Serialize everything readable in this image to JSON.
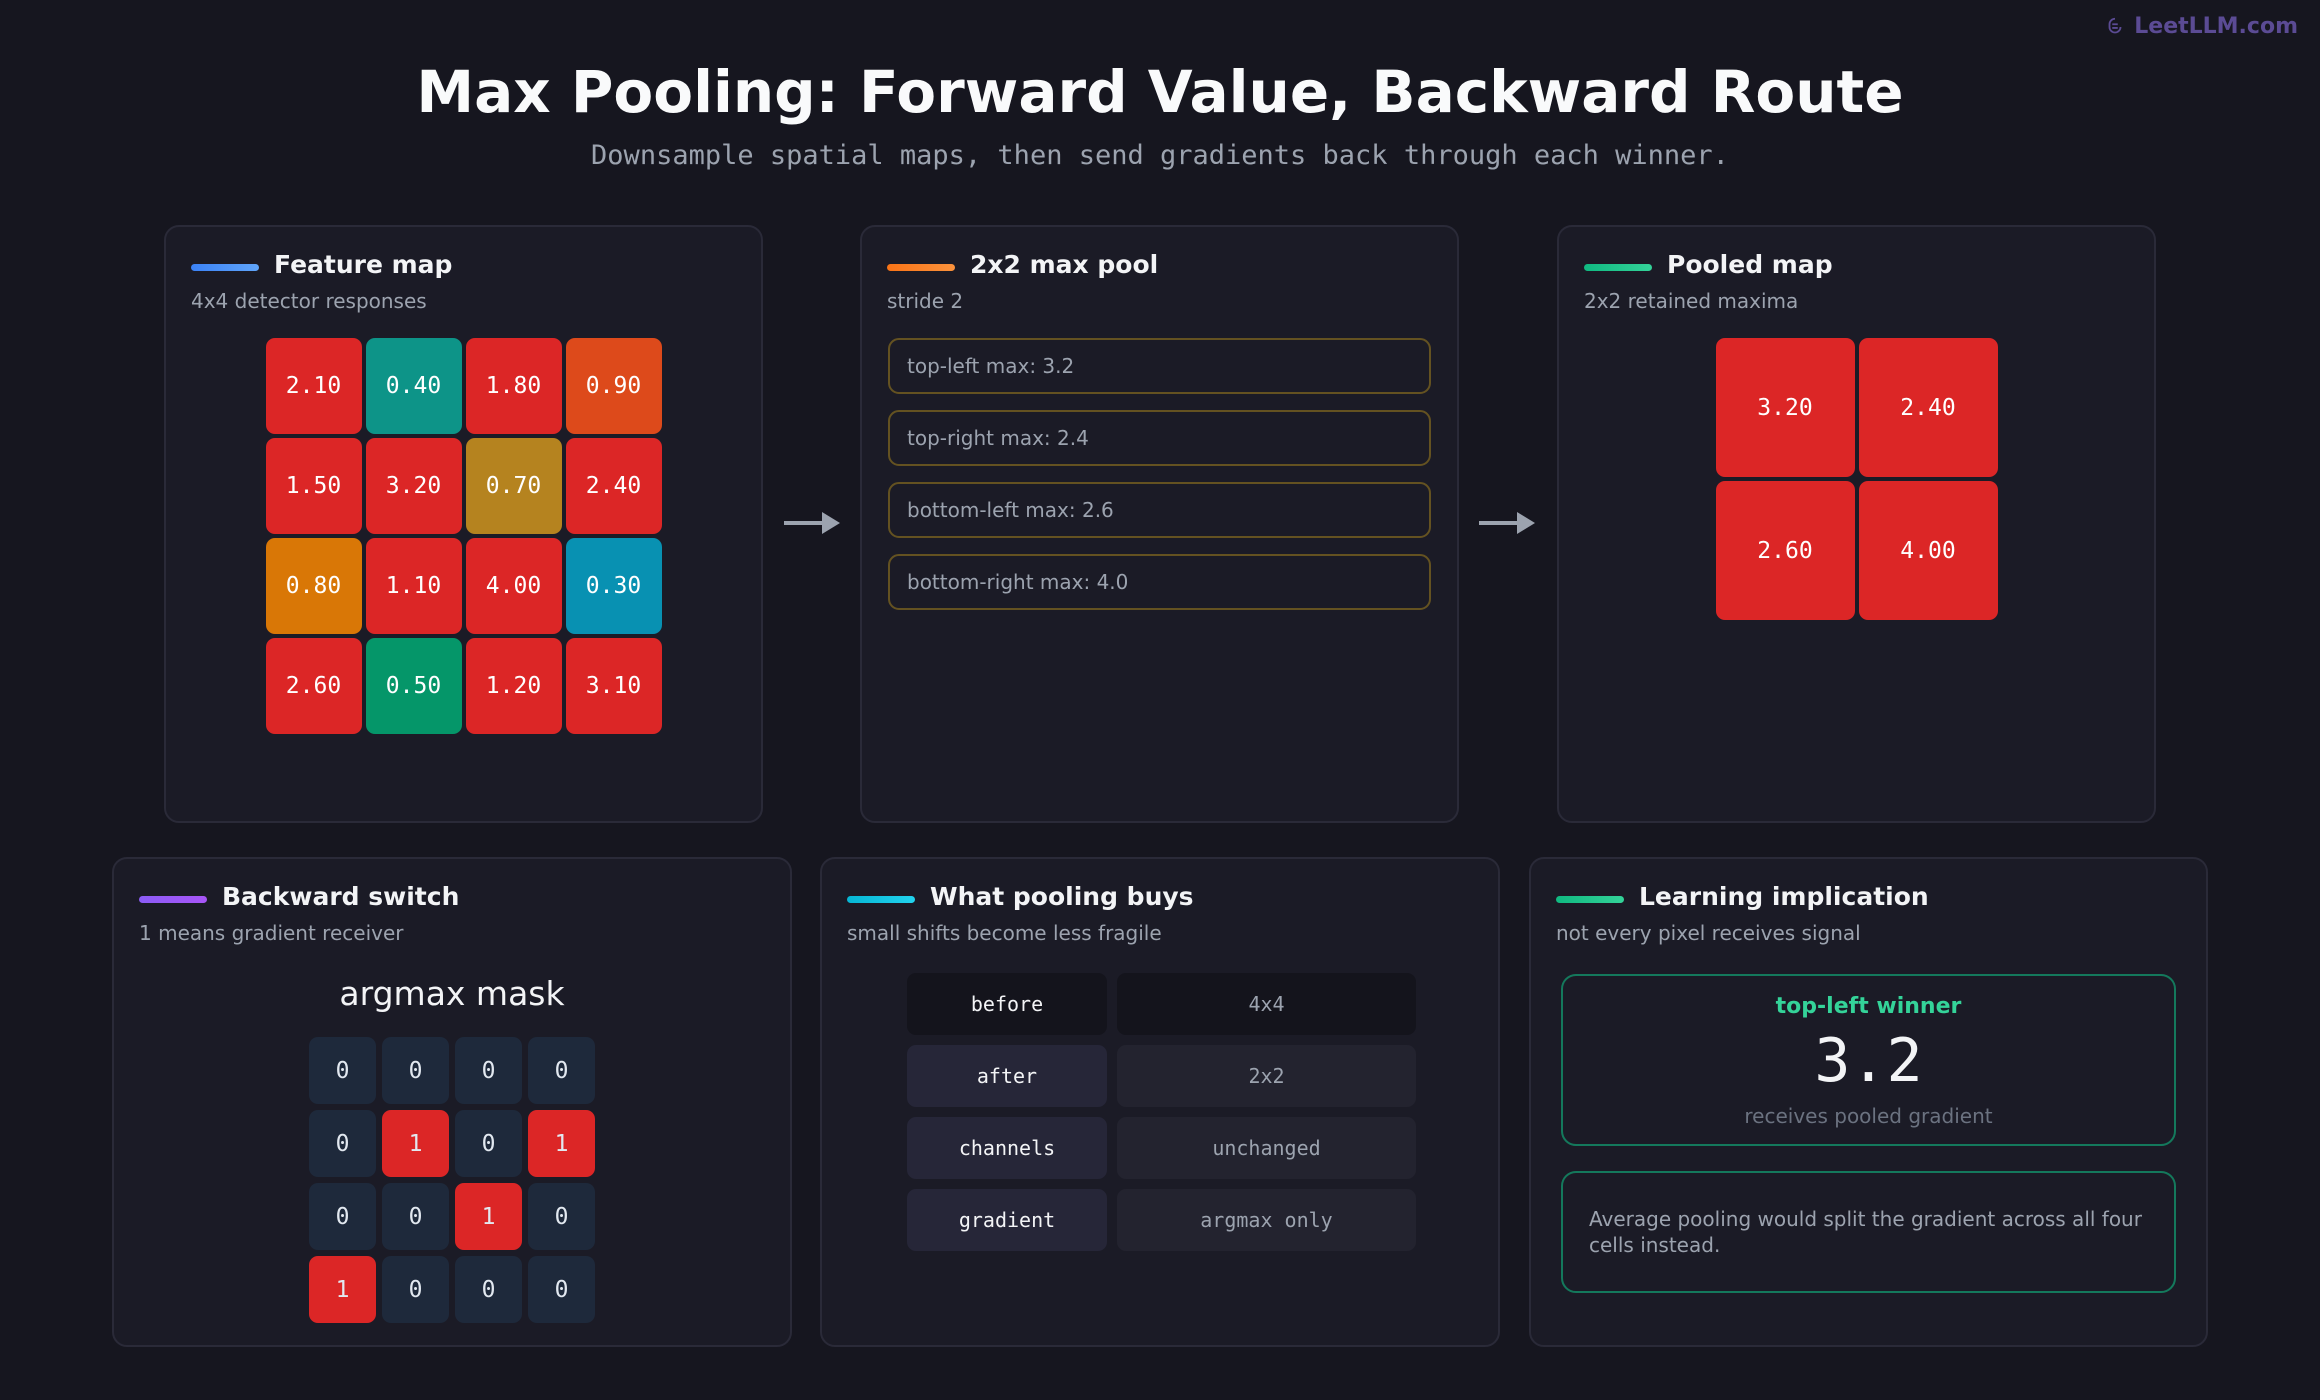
{
  "brand": "LeetLLM.com",
  "header": {
    "title": "Max Pooling: Forward Value, Backward Route",
    "subtitle": "Downsample spatial maps, then send gradients back through each winner."
  },
  "feature_map": {
    "title": "Feature map",
    "subtitle": "4x4 detector responses",
    "cells": [
      [
        "2.10",
        "0.40",
        "1.80",
        "0.90"
      ],
      [
        "1.50",
        "3.20",
        "0.70",
        "2.40"
      ],
      [
        "0.80",
        "1.10",
        "4.00",
        "0.30"
      ],
      [
        "2.60",
        "0.50",
        "1.20",
        "3.10"
      ]
    ],
    "colors": [
      [
        "#dc2626",
        "#0d9488",
        "#dc2626",
        "#dd4a1b"
      ],
      [
        "#dc2626",
        "#dc2626",
        "#b5831f",
        "#dc2626"
      ],
      [
        "#d97706",
        "#dc2626",
        "#dc2626",
        "#0891b2"
      ],
      [
        "#dc2626",
        "#059669",
        "#dc2626",
        "#dc2626"
      ]
    ]
  },
  "max_pool": {
    "title": "2x2 max pool",
    "subtitle": "stride 2",
    "windows": [
      "top-left max: 3.2",
      "top-right max: 2.4",
      "bottom-left max: 2.6",
      "bottom-right max: 4.0"
    ]
  },
  "pooled_map": {
    "title": "Pooled map",
    "subtitle": "2x2 retained maxima",
    "cells": [
      [
        "3.20",
        "2.40"
      ],
      [
        "2.60",
        "4.00"
      ]
    ],
    "colors": [
      [
        "#dc2626",
        "#dc2626"
      ],
      [
        "#dc2626",
        "#dc2626"
      ]
    ]
  },
  "backward_switch": {
    "title": "Backward switch",
    "subtitle": "1 means gradient receiver",
    "mask_title": "argmax mask",
    "mask": [
      [
        "0",
        "0",
        "0",
        "0"
      ],
      [
        "0",
        "1",
        "0",
        "1"
      ],
      [
        "0",
        "0",
        "1",
        "0"
      ],
      [
        "1",
        "0",
        "0",
        "0"
      ]
    ],
    "colors": [
      [
        "#1e293b",
        "#1e293b",
        "#1e293b",
        "#1e293b"
      ],
      [
        "#1e293b",
        "#dc2626",
        "#1e293b",
        "#dc2626"
      ],
      [
        "#1e293b",
        "#1e293b",
        "#dc2626",
        "#1e293b"
      ],
      [
        "#dc2626",
        "#1e293b",
        "#1e293b",
        "#1e293b"
      ]
    ]
  },
  "pooling_buys": {
    "title": "What pooling buys",
    "subtitle": "small shifts become less fragile",
    "rows": [
      [
        "before",
        "4x4"
      ],
      [
        "after",
        "2x2"
      ],
      [
        "channels",
        "unchanged"
      ],
      [
        "gradient",
        "argmax only"
      ]
    ]
  },
  "learning": {
    "title": "Learning implication",
    "subtitle": "not every pixel receives signal",
    "winner": {
      "label": "top-left winner",
      "value": "3.2",
      "caption": "receives pooled gradient"
    },
    "note": "Average pooling would split the gradient across all four cells instead."
  }
}
